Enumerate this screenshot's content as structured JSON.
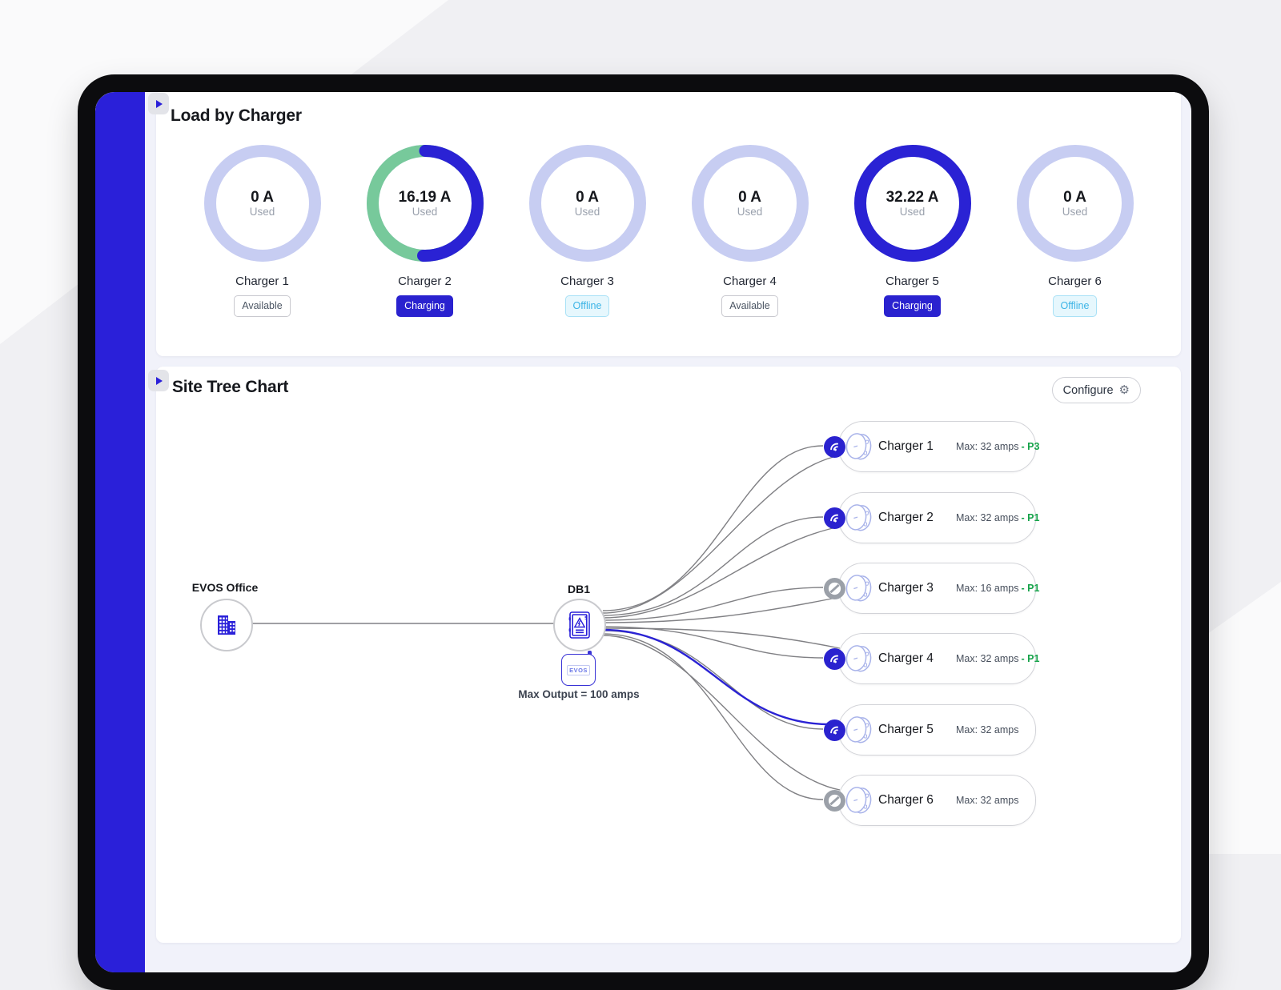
{
  "colors": {
    "accent_blue": "#2a22d4",
    "sidebar_blue": "#2a20d9",
    "ring_idle": "#c7cdf2",
    "ring_green": "#77c99b",
    "offline_text": "#3cb4e6",
    "priority_green": "#16a34a"
  },
  "load_by_charger": {
    "title": "Load by Charger",
    "used_caption": "Used",
    "chargers": [
      {
        "name": "Charger 1",
        "used_display": "0 A",
        "used_amps": 0,
        "ring_max_amps": 32,
        "status": "Available",
        "status_type": "available"
      },
      {
        "name": "Charger 2",
        "used_display": "16.19 A",
        "used_amps": 16.19,
        "ring_max_amps": 32,
        "status": "Charging",
        "status_type": "charging"
      },
      {
        "name": "Charger 3",
        "used_display": "0 A",
        "used_amps": 0,
        "ring_max_amps": 16,
        "status": "Offline",
        "status_type": "offline"
      },
      {
        "name": "Charger 4",
        "used_display": "0 A",
        "used_amps": 0,
        "ring_max_amps": 32,
        "status": "Available",
        "status_type": "available"
      },
      {
        "name": "Charger 5",
        "used_display": "32.22 A",
        "used_amps": 32.22,
        "ring_max_amps": 32,
        "status": "Charging",
        "status_type": "charging"
      },
      {
        "name": "Charger 6",
        "used_display": "0 A",
        "used_amps": 0,
        "ring_max_amps": 32,
        "status": "Offline",
        "status_type": "offline"
      }
    ]
  },
  "site_tree": {
    "title": "Site Tree Chart",
    "configure_label": "Configure",
    "site_name": "EVOS Office",
    "db_name": "DB1",
    "gateway_label": "EVOS",
    "max_output_label": "Max Output = 100 amps",
    "chargers": [
      {
        "name": "Charger 1",
        "max_label": "Max: 32 amps",
        "priority_label": "- P3",
        "online": true
      },
      {
        "name": "Charger 2",
        "max_label": "Max: 32 amps",
        "priority_label": "- P1",
        "online": true
      },
      {
        "name": "Charger 3",
        "max_label": "Max: 16 amps",
        "priority_label": "- P1",
        "online": false
      },
      {
        "name": "Charger 4",
        "max_label": "Max: 32 amps",
        "priority_label": "- P1",
        "online": true
      },
      {
        "name": "Charger 5",
        "max_label": "Max: 32 amps",
        "priority_label": "",
        "online": true
      },
      {
        "name": "Charger 6",
        "max_label": "Max: 32 amps",
        "priority_label": "",
        "online": false
      }
    ]
  }
}
